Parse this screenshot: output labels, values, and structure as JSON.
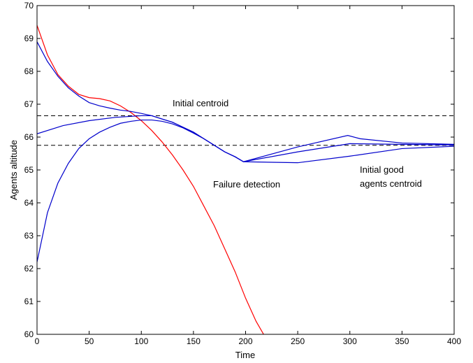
{
  "chart_data": {
    "type": "line",
    "xlabel": "Time",
    "ylabel": "Agents altitude",
    "xlim": [
      0,
      400
    ],
    "xticks": [
      0,
      50,
      100,
      150,
      200,
      250,
      300,
      350,
      400
    ],
    "ylim": [
      60,
      70
    ],
    "yticks": [
      60,
      61,
      62,
      63,
      64,
      65,
      66,
      67,
      68,
      69,
      70
    ],
    "series": [
      {
        "color": "#ff0000",
        "x": [
          0,
          10,
          20,
          30,
          40,
          50,
          60,
          70,
          80,
          90,
          100,
          110,
          120,
          130,
          140,
          150,
          160,
          170,
          180,
          190,
          200,
          210,
          220
        ],
        "values": [
          69.4,
          68.5,
          67.9,
          67.55,
          67.3,
          67.2,
          67.17,
          67.1,
          66.95,
          66.75,
          66.5,
          66.2,
          65.85,
          65.45,
          65.0,
          64.5,
          63.9,
          63.3,
          62.6,
          61.9,
          61.1,
          60.4,
          59.85
        ]
      },
      {
        "color": "#0000cc",
        "x": [
          0,
          10,
          20,
          30,
          40,
          50,
          60,
          70,
          80,
          90,
          100,
          110,
          120,
          130,
          140,
          150,
          160,
          170,
          180,
          190,
          198,
          250,
          298,
          310,
          350,
          400
        ],
        "values": [
          68.9,
          68.3,
          67.85,
          67.5,
          67.25,
          67.05,
          66.95,
          66.88,
          66.82,
          66.78,
          66.72,
          66.65,
          66.55,
          66.45,
          66.3,
          66.15,
          65.95,
          65.75,
          65.55,
          65.4,
          65.25,
          65.7,
          66.05,
          65.95,
          65.82,
          65.78
        ]
      },
      {
        "color": "#0000cc",
        "x": [
          0,
          25,
          50,
          75,
          100,
          110,
          120,
          130,
          140,
          150,
          160,
          170,
          180,
          190,
          198,
          250,
          300,
          350,
          400
        ],
        "values": [
          66.1,
          66.35,
          66.5,
          66.6,
          66.65,
          66.65,
          66.55,
          66.45,
          66.3,
          66.15,
          65.95,
          65.75,
          65.55,
          65.4,
          65.25,
          65.55,
          65.8,
          65.78,
          65.76
        ]
      },
      {
        "color": "#0000cc",
        "x": [
          0,
          10,
          20,
          30,
          40,
          50,
          60,
          70,
          80,
          90,
          100,
          110,
          120,
          130,
          140,
          150,
          160,
          170,
          180,
          190,
          198,
          250,
          300,
          350,
          400
        ],
        "values": [
          62.2,
          63.7,
          64.6,
          65.2,
          65.65,
          65.95,
          66.15,
          66.3,
          66.42,
          66.48,
          66.52,
          66.52,
          66.48,
          66.4,
          66.28,
          66.12,
          65.95,
          65.75,
          65.55,
          65.4,
          65.25,
          65.22,
          65.42,
          65.65,
          65.72
        ]
      }
    ],
    "hlines": [
      {
        "value": 66.65,
        "color": "#000000",
        "dashed": true
      },
      {
        "value": 65.75,
        "color": "#000000",
        "dashed": true
      }
    ],
    "annotations": [
      {
        "lines": [
          "Initial centroid"
        ]
      },
      {
        "lines": [
          "Failure detection"
        ]
      },
      {
        "lines": [
          "Initial good",
          "agents centroid"
        ]
      }
    ]
  }
}
